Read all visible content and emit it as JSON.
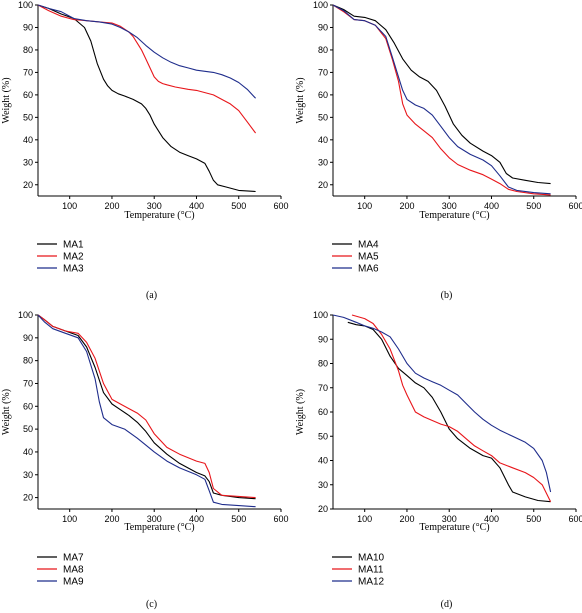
{
  "chart_data": [
    {
      "type": "line",
      "panel_caption": "(a)",
      "xlabel": "Temperature (°C)",
      "ylabel": "Weight (%)",
      "xlim": [
        25,
        600
      ],
      "ylim": [
        15,
        100
      ],
      "xticks": [
        100,
        200,
        300,
        400,
        500,
        600
      ],
      "yticks": [
        20,
        30,
        40,
        50,
        60,
        70,
        80,
        90,
        100
      ],
      "legend": "bottom-left-below",
      "series": [
        {
          "name": "MA1",
          "color": "#000000",
          "x": [
            25,
            50,
            80,
            110,
            135,
            150,
            165,
            180,
            190,
            200,
            215,
            230,
            250,
            270,
            280,
            290,
            300,
            320,
            340,
            360,
            380,
            400,
            420,
            430,
            440,
            450,
            470,
            500,
            540
          ],
          "y": [
            100,
            98.5,
            96,
            94,
            90,
            84,
            74,
            67,
            64,
            62,
            60.5,
            59.5,
            58,
            56,
            54,
            51,
            47,
            41,
            37,
            34.5,
            33,
            31.5,
            29.5,
            26,
            22,
            20,
            19,
            17.5,
            17
          ]
        },
        {
          "name": "MA2",
          "color": "#e8161b",
          "x": [
            25,
            50,
            80,
            110,
            140,
            170,
            200,
            220,
            240,
            250,
            260,
            270,
            280,
            290,
            300,
            310,
            320,
            330,
            350,
            380,
            400,
            420,
            440,
            460,
            480,
            500,
            520,
            540
          ],
          "y": [
            100,
            97.5,
            95,
            93.5,
            93,
            92.5,
            92,
            90.5,
            88,
            86,
            83,
            80,
            76,
            72,
            68,
            66,
            65,
            64.5,
            63.5,
            62.5,
            62,
            61,
            60,
            58,
            56,
            53,
            48,
            43
          ]
        },
        {
          "name": "MA3",
          "color": "#1f2d8c",
          "x": [
            25,
            50,
            80,
            110,
            140,
            170,
            200,
            220,
            240,
            260,
            280,
            300,
            320,
            340,
            360,
            380,
            400,
            420,
            440,
            460,
            480,
            500,
            520,
            540
          ],
          "y": [
            100,
            98.5,
            97,
            94,
            93,
            92.5,
            91.5,
            90,
            88,
            85.5,
            82,
            79,
            76.5,
            74.5,
            73,
            72,
            71,
            70.5,
            70,
            69,
            67.5,
            65.5,
            62.5,
            58.5
          ]
        }
      ]
    },
    {
      "type": "line",
      "panel_caption": "(b)",
      "xlabel": "Temperature (°C)",
      "ylabel": "Weight (%)",
      "xlim": [
        25,
        600
      ],
      "ylim": [
        15,
        100
      ],
      "xticks": [
        100,
        200,
        300,
        400,
        500,
        600
      ],
      "yticks": [
        20,
        30,
        40,
        50,
        60,
        70,
        80,
        90,
        100
      ],
      "legend": "bottom-left-below",
      "series": [
        {
          "name": "MA4",
          "color": "#000000",
          "x": [
            25,
            50,
            75,
            100,
            125,
            150,
            170,
            190,
            210,
            230,
            250,
            270,
            290,
            310,
            330,
            350,
            380,
            400,
            420,
            435,
            450,
            480,
            510,
            540
          ],
          "y": [
            100,
            98,
            95,
            94.5,
            93,
            89,
            83,
            76,
            71,
            68,
            66,
            62,
            55,
            47,
            42,
            38.5,
            35,
            33,
            30,
            25,
            23,
            22,
            21,
            20.5
          ]
        },
        {
          "name": "MA5",
          "color": "#e8161b",
          "x": [
            25,
            50,
            75,
            100,
            125,
            150,
            165,
            180,
            190,
            200,
            220,
            240,
            260,
            280,
            300,
            320,
            350,
            380,
            400,
            420,
            440,
            460,
            500,
            540
          ],
          "y": [
            100,
            97,
            93.5,
            93,
            91,
            85,
            76,
            66,
            56,
            51,
            47,
            44,
            41,
            36,
            32,
            29,
            26.5,
            24.5,
            22.5,
            20.5,
            18,
            17,
            16,
            15.5
          ]
        },
        {
          "name": "MA6",
          "color": "#1f2d8c",
          "x": [
            25,
            50,
            75,
            100,
            125,
            150,
            165,
            180,
            190,
            200,
            220,
            240,
            260,
            280,
            300,
            320,
            350,
            380,
            400,
            420,
            440,
            460,
            500,
            540
          ],
          "y": [
            100,
            97.5,
            93.5,
            93,
            91,
            86,
            77,
            68,
            62,
            58,
            55.5,
            54,
            51,
            46,
            41,
            37,
            33.5,
            31,
            28.5,
            24,
            19,
            17.5,
            16.5,
            16
          ]
        }
      ]
    },
    {
      "type": "line",
      "panel_caption": "(c)",
      "xlabel": "Temperature (°C)",
      "ylabel": "Weight (%)",
      "xlim": [
        25,
        600
      ],
      "ylim": [
        15,
        100
      ],
      "xticks": [
        100,
        200,
        300,
        400,
        500,
        600
      ],
      "yticks": [
        20,
        30,
        40,
        50,
        60,
        70,
        80,
        90,
        100
      ],
      "legend": "bottom-left-below",
      "series": [
        {
          "name": "MA7",
          "color": "#000000",
          "x": [
            25,
            40,
            60,
            90,
            120,
            140,
            160,
            180,
            200,
            220,
            240,
            260,
            280,
            300,
            330,
            360,
            400,
            420,
            430,
            440,
            460,
            500,
            540
          ],
          "y": [
            100,
            98,
            95,
            93,
            91,
            86,
            77,
            66,
            61,
            58.5,
            56,
            53,
            49,
            44,
            39,
            35,
            31,
            29.5,
            27,
            22,
            21,
            20,
            19.5
          ]
        },
        {
          "name": "MA8",
          "color": "#e8161b",
          "x": [
            25,
            40,
            60,
            90,
            120,
            140,
            160,
            180,
            200,
            220,
            240,
            260,
            280,
            300,
            330,
            360,
            400,
            420,
            430,
            440,
            460,
            500,
            540
          ],
          "y": [
            100,
            98,
            95,
            93,
            92,
            88,
            81,
            70,
            63,
            61,
            59,
            57,
            54,
            48,
            42,
            39,
            36,
            35,
            31,
            24,
            21,
            20.5,
            20
          ]
        },
        {
          "name": "MA9",
          "color": "#1f2d8c",
          "x": [
            25,
            40,
            60,
            90,
            120,
            140,
            160,
            170,
            180,
            200,
            230,
            260,
            280,
            300,
            330,
            360,
            400,
            420,
            430,
            440,
            460,
            500,
            540
          ],
          "y": [
            100,
            97,
            94,
            92,
            90,
            84,
            72,
            62,
            55,
            52,
            50,
            46,
            43,
            40,
            36,
            33,
            30,
            28,
            23,
            18,
            17,
            16.5,
            16
          ]
        }
      ]
    },
    {
      "type": "line",
      "panel_caption": "(d)",
      "xlabel": "Temperature (°C)",
      "ylabel": "Weight (%)",
      "xlim": [
        25,
        600
      ],
      "ylim": [
        20,
        100
      ],
      "xticks": [
        100,
        200,
        300,
        400,
        500,
        600
      ],
      "yticks": [
        20,
        30,
        40,
        50,
        60,
        70,
        80,
        90,
        100
      ],
      "legend": "bottom-left-below",
      "series": [
        {
          "name": "MA10",
          "color": "#000000",
          "x": [
            60,
            80,
            100,
            120,
            140,
            160,
            180,
            200,
            220,
            240,
            260,
            280,
            300,
            320,
            350,
            380,
            400,
            420,
            440,
            450,
            480,
            510,
            540
          ],
          "y": [
            97,
            96,
            95.5,
            94,
            90,
            83,
            78,
            75,
            72,
            70,
            66,
            60,
            53,
            49,
            45,
            42,
            41,
            37,
            30,
            27,
            25,
            23.5,
            23
          ]
        },
        {
          "name": "MA11",
          "color": "#e8161b",
          "x": [
            70,
            100,
            120,
            140,
            160,
            180,
            190,
            200,
            220,
            240,
            260,
            280,
            300,
            320,
            340,
            360,
            380,
            400,
            420,
            450,
            480,
            500,
            520,
            540
          ],
          "y": [
            100,
            98.5,
            96.5,
            92,
            86,
            77,
            71,
            67,
            60,
            58,
            56.5,
            55,
            54,
            52,
            49,
            46,
            44,
            42,
            39,
            37,
            35,
            33,
            30,
            23
          ]
        },
        {
          "name": "MA12",
          "color": "#1f2d8c",
          "x": [
            25,
            50,
            80,
            100,
            120,
            140,
            160,
            180,
            200,
            220,
            240,
            260,
            280,
            300,
            320,
            340,
            360,
            380,
            400,
            420,
            450,
            480,
            500,
            520,
            530,
            540
          ],
          "y": [
            100,
            99,
            97,
            95.5,
            94.5,
            93,
            91,
            86,
            80,
            76,
            74,
            72.5,
            71,
            69,
            67,
            63.5,
            60,
            57,
            54.5,
            52.5,
            50,
            47.5,
            45,
            40,
            35,
            27
          ]
        }
      ]
    }
  ]
}
